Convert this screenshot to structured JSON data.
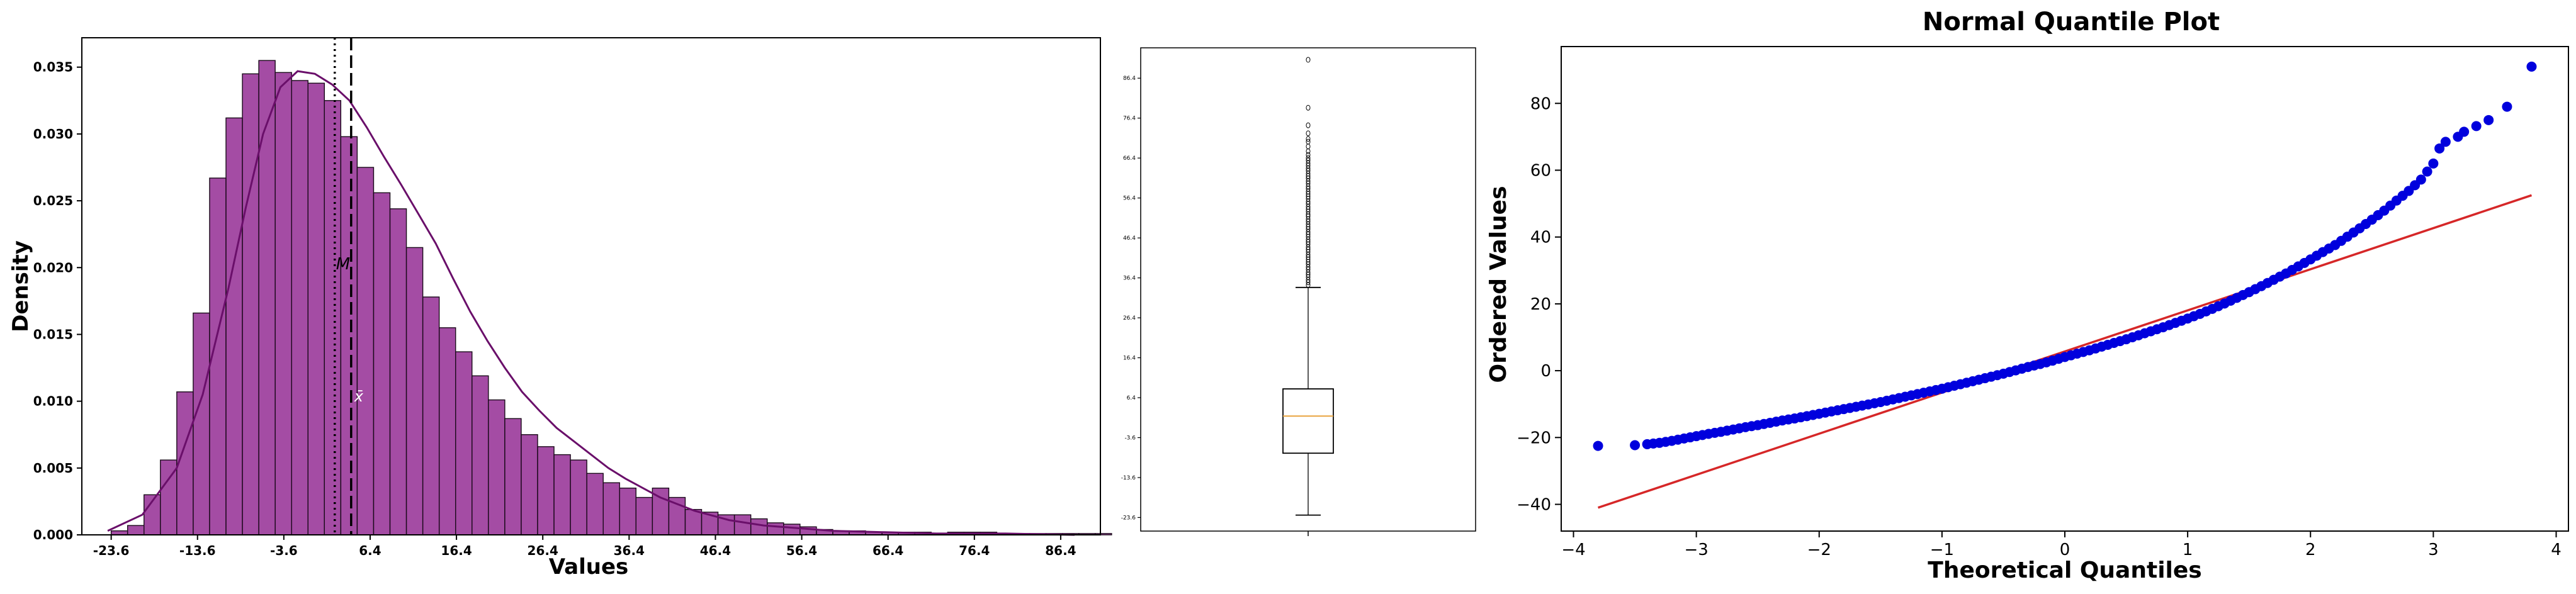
{
  "chart_data": [
    {
      "type": "histogram",
      "xlabel": "Values",
      "ylabel": "Density",
      "xlim": [
        -27,
        91
      ],
      "ylim": [
        0,
        0.0372
      ],
      "xticks": [
        "-23.6",
        "-13.6",
        "-3.6",
        "6.4",
        "16.4",
        "26.4",
        "36.4",
        "46.4",
        "56.4",
        "66.4",
        "76.4",
        "86.4"
      ],
      "yticks": [
        "0.000",
        "0.005",
        "0.010",
        "0.015",
        "0.020",
        "0.025",
        "0.030",
        "0.035"
      ],
      "bin_width": 1.9,
      "bin_start": -23.6,
      "densities": [
        0.0003,
        0.0007,
        0.003,
        0.0056,
        0.0107,
        0.0166,
        0.0267,
        0.0312,
        0.0345,
        0.0355,
        0.0346,
        0.034,
        0.0338,
        0.0325,
        0.0298,
        0.0275,
        0.0256,
        0.0244,
        0.0215,
        0.0178,
        0.0155,
        0.0137,
        0.0119,
        0.0101,
        0.0087,
        0.0075,
        0.0066,
        0.006,
        0.0056,
        0.0046,
        0.0039,
        0.0035,
        0.0028,
        0.0035,
        0.0028,
        0.0019,
        0.0017,
        0.0015,
        0.0015,
        0.0012,
        0.0009,
        0.0008,
        0.0006,
        0.0004,
        0.0003,
        0.0003,
        0.0002,
        0.0002,
        0.0002,
        0.0002,
        0.0001,
        0.0002,
        0.0002,
        0.0002,
        0.0001,
        0.0001,
        0.0001,
        0.0001,
        0.0001,
        0.0001,
        0.0001
      ],
      "kde_x": [
        -24,
        -20,
        -16,
        -13,
        -10,
        -8,
        -6,
        -4,
        -2,
        0,
        2,
        4,
        6,
        8,
        10,
        12,
        14,
        16,
        18,
        20,
        22,
        24,
        26,
        28,
        30,
        32,
        34,
        36,
        40,
        44,
        48,
        52,
        56,
        60,
        66,
        72,
        80,
        88
      ],
      "kde_y": [
        0.0003,
        0.0015,
        0.005,
        0.0105,
        0.0185,
        0.0245,
        0.03,
        0.0335,
        0.0347,
        0.0345,
        0.0337,
        0.0325,
        0.0305,
        0.0283,
        0.0262,
        0.024,
        0.0218,
        0.0192,
        0.0167,
        0.0145,
        0.0125,
        0.0107,
        0.0093,
        0.008,
        0.007,
        0.006,
        0.005,
        0.0042,
        0.0028,
        0.0018,
        0.0011,
        0.0007,
        0.0005,
        0.0003,
        0.0002,
        0.0001,
        0.0001,
        0.0
      ],
      "median": 2.3,
      "mean": 4.2,
      "median_label": "M",
      "mean_label": "x̄",
      "median_label_y": 0.0203,
      "mean_label_y": 0.0104,
      "bar_color": "#8B1A8B",
      "line_color": "#6A0F6A",
      "grid": false
    },
    {
      "type": "boxplot",
      "yticks": [
        "-23.6",
        "-13.6",
        "-3.6",
        "6.4",
        "16.4",
        "26.4",
        "36.4",
        "46.4",
        "56.4",
        "66.4",
        "76.4",
        "86.4"
      ],
      "ylim": [
        -27,
        94
      ],
      "whisker_low": -23.0,
      "q1": -7.5,
      "median": 1.8,
      "q3": 8.6,
      "whisker_high": 34.0,
      "outliers": [
        34.6,
        35.3,
        35.9,
        36.6,
        37.2,
        37.8,
        38.5,
        39.1,
        39.8,
        40.4,
        41.0,
        41.6,
        42.2,
        42.9,
        43.5,
        44.1,
        44.8,
        45.4,
        46.0,
        46.7,
        47.3,
        47.9,
        48.6,
        49.2,
        49.8,
        50.5,
        51.1,
        51.8,
        52.3,
        53.0,
        53.6,
        54.2,
        54.9,
        55.5,
        56.2,
        56.8,
        57.4,
        58.0,
        58.7,
        59.3,
        60.0,
        60.6,
        61.3,
        61.9,
        62.5,
        63.2,
        63.8,
        64.5,
        65.1,
        65.8,
        66.4,
        67.2,
        68.1,
        69.3,
        70.5,
        71.2,
        72.6,
        74.6,
        79.0,
        91.0
      ],
      "median_color": "#E8A33D",
      "grid": false
    },
    {
      "type": "scatter",
      "title": "Normal Quantile Plot",
      "xlabel": "Theoretical Quantiles",
      "ylabel": "Ordered Values",
      "xlim": [
        -4.1,
        4.1
      ],
      "ylim": [
        -48,
        97
      ],
      "xticks": [
        "−4",
        "−3",
        "−2",
        "−1",
        "0",
        "1",
        "2",
        "3",
        "4"
      ],
      "yticks": [
        "−40",
        "−20",
        "0",
        "20",
        "40",
        "60",
        "80"
      ],
      "points_x": [
        -3.8,
        -3.5,
        -3.4,
        -3.3,
        -3.2,
        -3.1,
        -3.0,
        -2.9,
        -2.8,
        -2.7,
        -2.6,
        -2.5,
        -2.4,
        -2.3,
        -2.2,
        -2.1,
        -2.0,
        -1.9,
        -1.8,
        -1.7,
        -1.6,
        -1.5,
        -1.4,
        -1.3,
        -1.2,
        -1.1,
        -1.0,
        -0.9,
        -0.8,
        -0.7,
        -0.6,
        -0.5,
        -0.4,
        -0.3,
        -0.2,
        -0.1,
        0.0,
        0.1,
        0.2,
        0.3,
        0.4,
        0.5,
        0.6,
        0.7,
        0.8,
        0.9,
        1.0,
        1.1,
        1.2,
        1.3,
        1.4,
        1.5,
        1.6,
        1.7,
        1.8,
        1.9,
        2.0,
        2.1,
        2.2,
        2.3,
        2.4,
        2.5,
        2.6,
        2.7,
        2.8,
        2.9,
        3.0,
        3.05,
        3.1,
        3.2,
        3.25,
        3.35,
        3.45,
        3.6,
        3.8
      ],
      "points_y": [
        -22.5,
        -22.3,
        -22.0,
        -21.6,
        -21.0,
        -20.3,
        -19.6,
        -18.9,
        -18.3,
        -17.6,
        -16.9,
        -16.3,
        -15.6,
        -14.9,
        -14.3,
        -13.6,
        -12.9,
        -12.2,
        -11.5,
        -10.8,
        -10.1,
        -9.4,
        -8.6,
        -7.8,
        -7.0,
        -6.2,
        -5.4,
        -4.5,
        -3.6,
        -2.7,
        -1.8,
        -0.9,
        0.1,
        1.1,
        2.0,
        3.0,
        4.1,
        5.1,
        6.1,
        7.2,
        8.3,
        9.4,
        10.6,
        11.8,
        13.0,
        14.3,
        15.6,
        17.0,
        18.5,
        20.1,
        21.8,
        23.5,
        25.3,
        27.2,
        29.1,
        31.2,
        33.3,
        35.5,
        37.6,
        40.1,
        42.6,
        45.2,
        47.9,
        50.9,
        53.8,
        57.2,
        62.0,
        66.5,
        68.5,
        70.0,
        71.5,
        73.2,
        75.0,
        79.0,
        91.0
      ],
      "fit_line": {
        "x": [
          -3.8,
          3.8
        ],
        "y": [
          -41.0,
          52.5
        ]
      },
      "point_color": "#0000DD",
      "line_color": "#D62728",
      "grid": false
    }
  ]
}
